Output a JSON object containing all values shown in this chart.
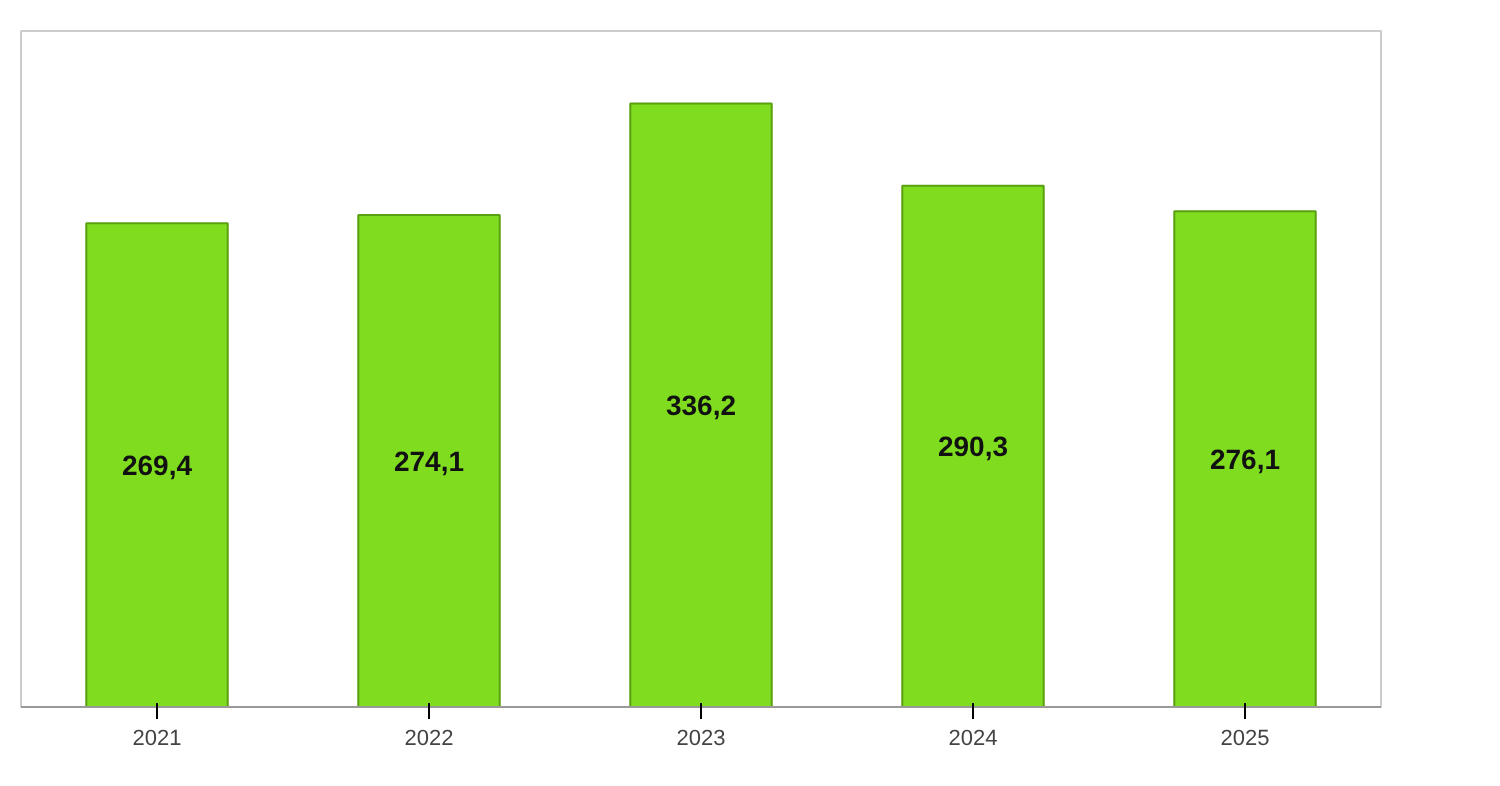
{
  "chart_data": {
    "type": "bar",
    "categories": [
      "2021",
      "2022",
      "2023",
      "2024",
      "2025"
    ],
    "values": [
      269.4,
      274.1,
      336.2,
      290.3,
      276.1
    ],
    "color": "#7fdc1e",
    "value_labels": [
      "269,4",
      "274,1",
      "336,2",
      "290,3",
      "276,1"
    ],
    "grid": false
  }
}
